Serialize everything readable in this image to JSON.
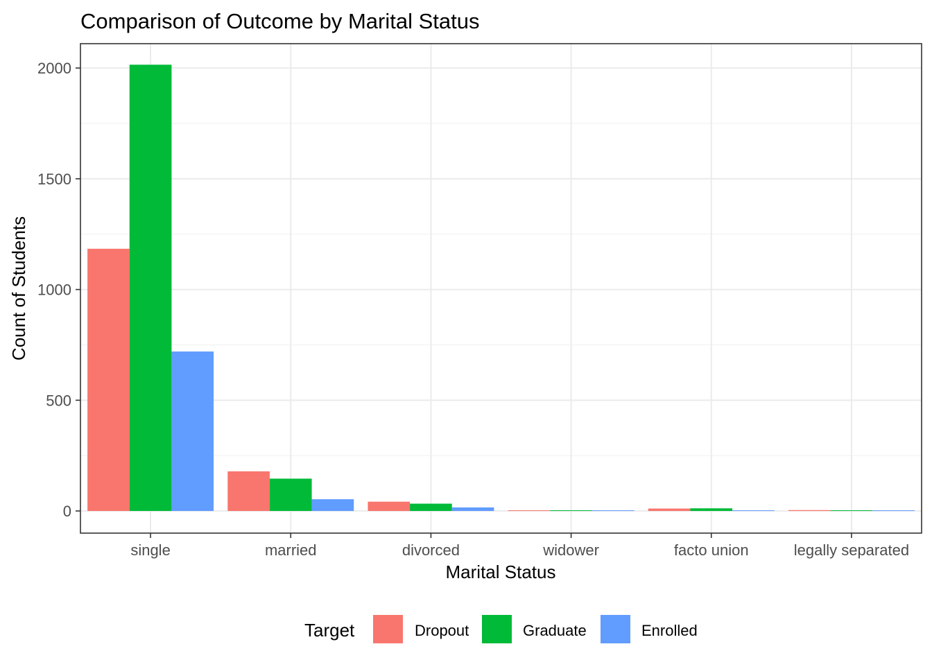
{
  "chart_data": {
    "type": "bar",
    "title": "Comparison of Outcome by Marital Status",
    "xlabel": "Marital Status",
    "ylabel": "Count of Students",
    "categories": [
      "single",
      "married",
      "divorced",
      "widower",
      "facto union",
      "legally separated"
    ],
    "series": [
      {
        "name": "Dropout",
        "color": "#F8766D",
        "values": [
          1184,
          179,
          42,
          1,
          11,
          4
        ]
      },
      {
        "name": "Graduate",
        "color": "#00BA38",
        "values": [
          2015,
          146,
          33,
          2,
          12,
          1
        ]
      },
      {
        "name": "Enrolled",
        "color": "#619CFF",
        "values": [
          720,
          53,
          16,
          1,
          2,
          1
        ]
      }
    ],
    "ylim": [
      -100,
      2110
    ],
    "yticks": [
      0,
      500,
      1000,
      1500,
      2000
    ],
    "grid": true,
    "legend": {
      "title": "Target",
      "position": "bottom"
    }
  }
}
